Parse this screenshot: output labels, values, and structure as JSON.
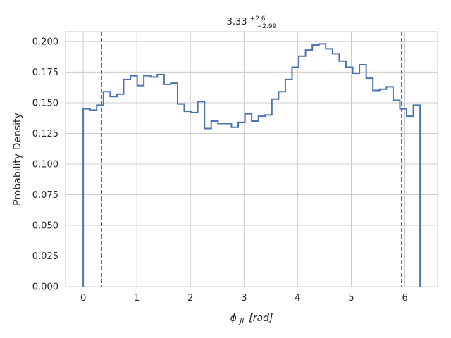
{
  "chart_data": {
    "type": "histogram-step",
    "title": {
      "main": "3.33",
      "sup": "+2.6",
      "sub": "−2.99"
    },
    "xlabel": {
      "symbol": "ϕ",
      "subscript": "JL",
      "unit": "[rad]"
    },
    "ylabel": "Probability Density",
    "xlim": [
      -0.33,
      6.61
    ],
    "ylim": [
      0.0,
      0.208
    ],
    "xticks": [
      0,
      1,
      2,
      3,
      4,
      5,
      6
    ],
    "yticks": [
      0.0,
      0.025,
      0.05,
      0.075,
      0.1,
      0.125,
      0.15,
      0.175,
      0.2
    ],
    "ytick_labels": [
      "0.000",
      "0.025",
      "0.050",
      "0.075",
      "0.100",
      "0.125",
      "0.150",
      "0.175",
      "0.200"
    ],
    "grid": true,
    "bin_range": [
      0.0,
      6.2832
    ],
    "bin_values": [
      0.145,
      0.144,
      0.148,
      0.159,
      0.155,
      0.157,
      0.169,
      0.172,
      0.164,
      0.172,
      0.171,
      0.173,
      0.165,
      0.166,
      0.149,
      0.143,
      0.142,
      0.151,
      0.129,
      0.135,
      0.133,
      0.133,
      0.13,
      0.134,
      0.141,
      0.135,
      0.139,
      0.14,
      0.153,
      0.159,
      0.169,
      0.179,
      0.188,
      0.193,
      0.197,
      0.198,
      0.194,
      0.19,
      0.184,
      0.179,
      0.174,
      0.181,
      0.17,
      0.16,
      0.161,
      0.163,
      0.152,
      0.145,
      0.139,
      0.148
    ],
    "vlines": [
      0.34,
      5.94
    ],
    "series_color": "#4c72b0"
  }
}
